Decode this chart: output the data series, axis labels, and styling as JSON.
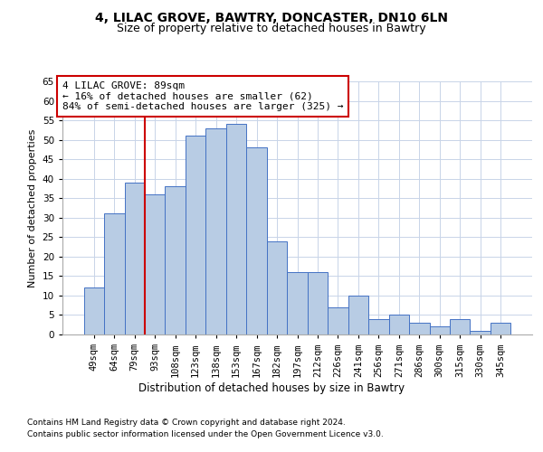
{
  "title1": "4, LILAC GROVE, BAWTRY, DONCASTER, DN10 6LN",
  "title2": "Size of property relative to detached houses in Bawtry",
  "xlabel": "Distribution of detached houses by size in Bawtry",
  "ylabel": "Number of detached properties",
  "categories": [
    "49sqm",
    "64sqm",
    "79sqm",
    "93sqm",
    "108sqm",
    "123sqm",
    "138sqm",
    "153sqm",
    "167sqm",
    "182sqm",
    "197sqm",
    "212sqm",
    "226sqm",
    "241sqm",
    "256sqm",
    "271sqm",
    "286sqm",
    "300sqm",
    "315sqm",
    "330sqm",
    "345sqm"
  ],
  "values": [
    12,
    31,
    39,
    36,
    38,
    51,
    53,
    54,
    48,
    24,
    16,
    16,
    7,
    10,
    4,
    5,
    3,
    2,
    4,
    1,
    3
  ],
  "bar_color": "#b8cce4",
  "bar_edge_color": "#4472c4",
  "vline_color": "#cc0000",
  "annotation_text": "4 LILAC GROVE: 89sqm\n← 16% of detached houses are smaller (62)\n84% of semi-detached houses are larger (325) →",
  "annotation_box_color": "#ffffff",
  "annotation_box_edge": "#cc0000",
  "ylim": [
    0,
    65
  ],
  "yticks": [
    0,
    5,
    10,
    15,
    20,
    25,
    30,
    35,
    40,
    45,
    50,
    55,
    60,
    65
  ],
  "footer1": "Contains HM Land Registry data © Crown copyright and database right 2024.",
  "footer2": "Contains public sector information licensed under the Open Government Licence v3.0.",
  "bg_color": "#ffffff",
  "grid_color": "#c8d4e8",
  "title1_fontsize": 10,
  "title2_fontsize": 9,
  "xlabel_fontsize": 8.5,
  "ylabel_fontsize": 8,
  "tick_fontsize": 7.5,
  "annotation_fontsize": 8,
  "footer_fontsize": 6.5
}
